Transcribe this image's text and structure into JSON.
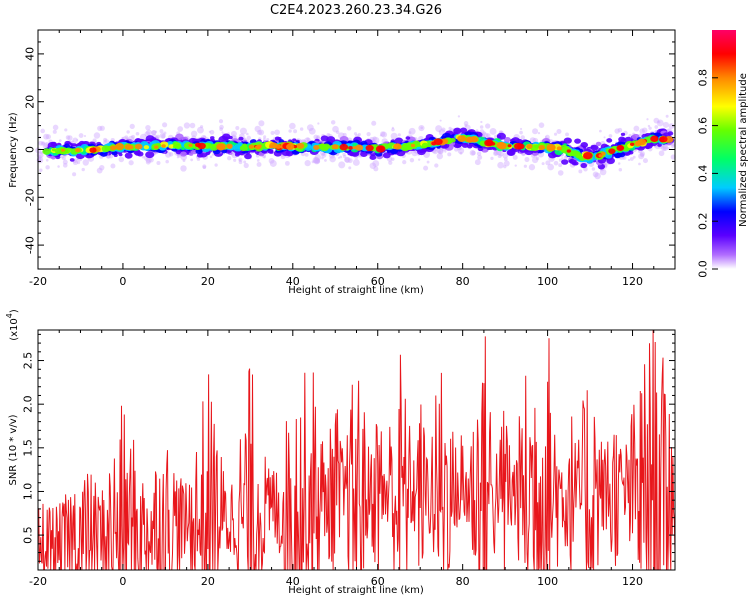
{
  "chart_data": [
    {
      "type": "heatmap",
      "title": "C2E4.2023.260.23.34.G26",
      "xlabel": "Height of straight line (km)",
      "ylabel": "Frequency (Hz)",
      "xlim": [
        -20,
        130
      ],
      "ylim": [
        -50,
        50
      ],
      "xticks": [
        "-20",
        "0",
        "20",
        "40",
        "60",
        "80",
        "100",
        "120"
      ],
      "yticks": [
        "40",
        "20",
        "0",
        "-20",
        "-40"
      ],
      "colorbar": {
        "label": "Normalized spectral amplitude",
        "range": [
          0,
          1
        ],
        "ticks": [
          "0.0",
          "0.2",
          "0.4",
          "0.6",
          "0.8"
        ]
      },
      "ridge": {
        "x": [
          -20,
          -10,
          0,
          10,
          20,
          30,
          40,
          50,
          60,
          70,
          76,
          80,
          85,
          90,
          100,
          104,
          108,
          112,
          116,
          120,
          125,
          130
        ],
        "y": [
          -0.5,
          -0.5,
          1,
          1.5,
          1.5,
          1,
          1.5,
          1,
          0.5,
          2,
          3.5,
          5,
          3,
          1.5,
          1,
          0,
          -3,
          -2.5,
          0,
          2,
          4.5,
          4
        ]
      }
    },
    {
      "type": "line",
      "xlabel": "Height of straight line (km)",
      "ylabel": "SNR (10 * v/v)",
      "yscale_label": "(x10",
      "yscale_exp": "4",
      "xlim": [
        -20,
        130
      ],
      "ylim": [
        0.1,
        2.85
      ],
      "xticks": [
        "-20",
        "0",
        "20",
        "40",
        "60",
        "80",
        "100",
        "120"
      ],
      "yticks": [
        "0.5",
        "1.0",
        "1.5",
        "2.0",
        "2.5"
      ],
      "color": "#e8161b",
      "series": [
        {
          "x": [
            -20,
            -15,
            -10,
            -5,
            0,
            5,
            10,
            15,
            20,
            25,
            30,
            35,
            40,
            45,
            50,
            55,
            60,
            65,
            70,
            75,
            80,
            85,
            90,
            95,
            100,
            105,
            110,
            115,
            120,
            125,
            130
          ],
          "y": [
            0.55,
            0.35,
            0.95,
            0.6,
            1.6,
            0.75,
            1.25,
            0.6,
            2.0,
            0.45,
            2.1,
            0.55,
            1.8,
            2.05,
            0.05,
            2.25,
            0.25,
            2.4,
            0.3,
            2.2,
            0.55,
            2.6,
            0.2,
            2.05,
            2.6,
            0.2,
            2.3,
            0.3,
            1.55,
            2.6,
            1.45
          ]
        }
      ]
    }
  ]
}
